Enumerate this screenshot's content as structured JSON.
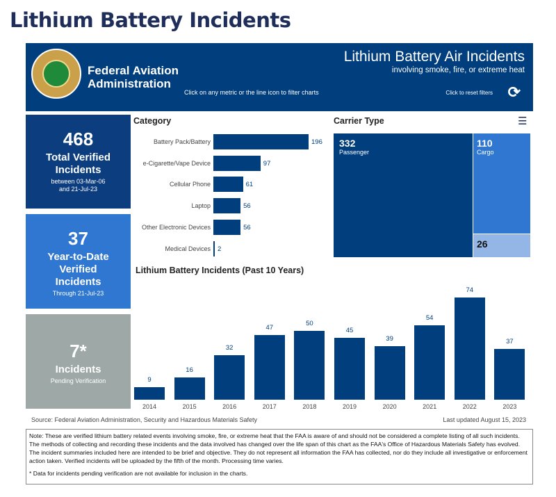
{
  "page_title": "Lithium Battery Incidents",
  "header": {
    "agency_line1": "Federal Aviation",
    "agency_line2": "Administration",
    "seal_text": "FEDERAL AVIATION ADMINISTRATION",
    "filter_hint": "Click on any metric or the line icon to filter charts",
    "title": "Lithium Battery Air Incidents",
    "subtitle": "involving smoke, fire, or extreme heat",
    "reset_label": "Click to reset filters",
    "reset_icon": "refresh-icon"
  },
  "cards": [
    {
      "number": "468",
      "label": "Total Verified Incidents",
      "detail": "between 03-Mar-06 and 21-Jul-23",
      "color": "#0b3d7f"
    },
    {
      "number": "37",
      "label": "Year-to-Date Verified Incidents",
      "detail": "Through 21-Jul-23",
      "color": "#2f77d0"
    },
    {
      "number": "7*",
      "label": "Incidents",
      "detail": "Pending Verification",
      "color": "#9ea8a6"
    }
  ],
  "chart_data": [
    {
      "type": "bar",
      "orientation": "horizontal",
      "title": "Category",
      "categories": [
        "Battery Pack/Battery",
        "e-Cigarette/Vape Device",
        "Cellular Phone",
        "Laptop",
        "Other Electronic Devices",
        "Medical Devices"
      ],
      "values": [
        196,
        97,
        61,
        56,
        56,
        2
      ],
      "color": "#003e7e"
    },
    {
      "type": "treemap",
      "title": "Carrier Type",
      "items": [
        {
          "label": "Passenger",
          "value": 332,
          "color": "#003e7e"
        },
        {
          "label": "Cargo",
          "value": 110,
          "color": "#2f77d0"
        },
        {
          "label": "",
          "value": 26,
          "color": "#94b6e6"
        }
      ]
    },
    {
      "type": "bar",
      "title": "Lithium Battery Incidents (Past 10 Years)",
      "categories": [
        "2014",
        "2015",
        "2016",
        "2017",
        "2018",
        "2019",
        "2020",
        "2021",
        "2022",
        "2023"
      ],
      "values": [
        9,
        16,
        32,
        47,
        50,
        45,
        39,
        54,
        74,
        37
      ],
      "color": "#003e7e"
    }
  ],
  "source": "Source: Federal Aviation Administration, Security and Hazardous Materials Safety",
  "last_updated": "Last updated August 15, 2023",
  "note": "Note: These are verified lithium battery related events involving smoke, fire, or extreme heat that the FAA is aware of and should not be considered a complete listing of all such incidents. The methods of collecting and recording these incidents and the data involved has changed over the life span of this chart as the FAA's Office of Hazardous Materials Safety has evolved.  The incident summaries included here are intended to be brief and objective. They do not represent all information the FAA has collected, nor do they include all investigative or enforcement action taken. Verified incidents will be uploaded by the fifth of the month. Processing time varies.",
  "footnote": "* Data for incidents pending verification are not available for inclusion in the charts."
}
